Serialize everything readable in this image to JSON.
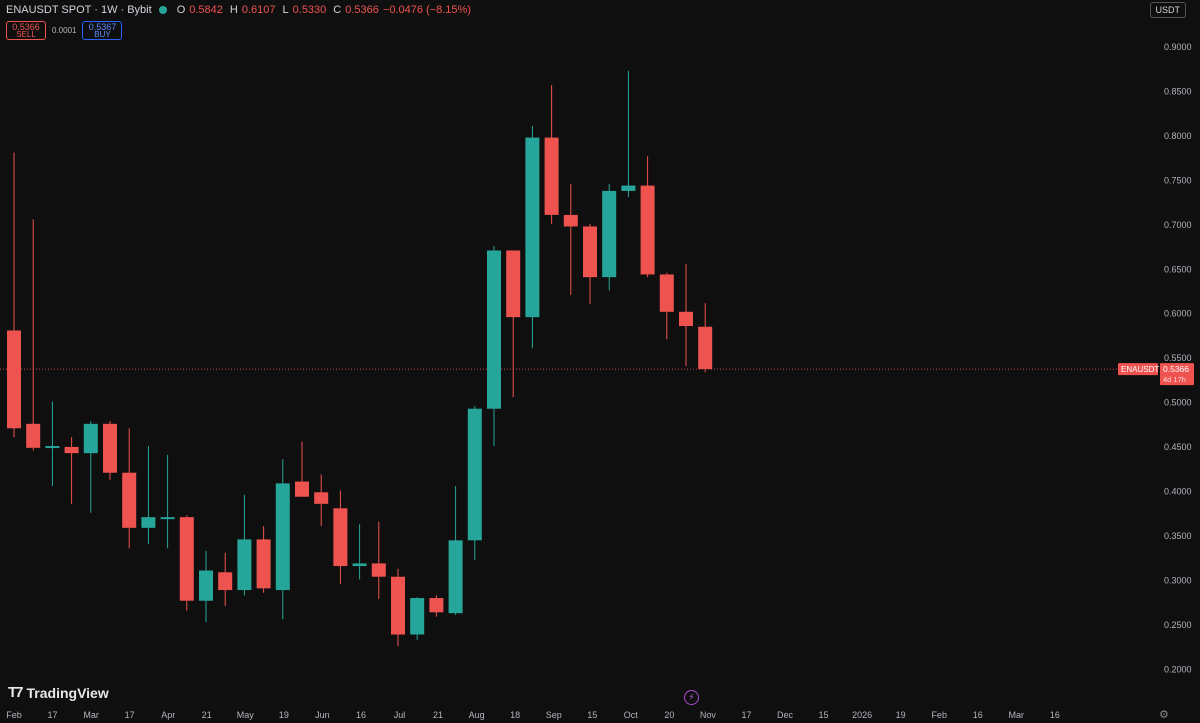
{
  "legend": {
    "symbol": "ENAUSDT SPOT · 1W · Bybit",
    "o_label": "O",
    "o": "0.5842",
    "h_label": "H",
    "h": "0.6107",
    "l_label": "L",
    "l": "0.5330",
    "c_label": "C",
    "c": "0.5366",
    "change": "−0.0476 (−8.15%)"
  },
  "trade": {
    "sell_price": "0.5366",
    "sell_label": "SELL",
    "spread": "0.0001",
    "buy_price": "0.5367",
    "buy_label": "BUY"
  },
  "currency": "USDT",
  "price_tag": {
    "name": "ENAUSDT",
    "price": "0.5366",
    "countdown": "4d 17h"
  },
  "brand": "TradingView",
  "colors": {
    "up": "#26a69a",
    "down": "#ef5350",
    "bg": "#0f0f0f",
    "axis_text": "#b2b5be"
  },
  "chart_data": {
    "type": "candlestick",
    "y_ticks": [
      "0.9000",
      "0.8500",
      "0.8000",
      "0.7500",
      "0.7000",
      "0.6500",
      "0.6000",
      "0.5500",
      "0.5000",
      "0.4500",
      "0.4000",
      "0.3500",
      "0.3000",
      "0.2500",
      "0.2000"
    ],
    "x_ticks": [
      "Feb",
      "17",
      "Mar",
      "17",
      "Apr",
      "21",
      "May",
      "19",
      "Jun",
      "16",
      "Jul",
      "21",
      "Aug",
      "18",
      "Sep",
      "15",
      "Oct",
      "20",
      "Nov",
      "17",
      "Dec",
      "15",
      "2026",
      "19",
      "Feb",
      "16",
      "Mar",
      "16"
    ],
    "ylim": [
      0.18,
      0.92
    ],
    "last_price": 0.5366,
    "candles": [
      {
        "o": 0.58,
        "h": 0.78,
        "l": 0.46,
        "c": 0.47
      },
      {
        "o": 0.475,
        "h": 0.705,
        "l": 0.445,
        "c": 0.448
      },
      {
        "o": 0.448,
        "h": 0.5,
        "l": 0.405,
        "c": 0.45
      },
      {
        "o": 0.449,
        "h": 0.46,
        "l": 0.385,
        "c": 0.442
      },
      {
        "o": 0.442,
        "h": 0.478,
        "l": 0.375,
        "c": 0.475
      },
      {
        "o": 0.475,
        "h": 0.478,
        "l": 0.412,
        "c": 0.42
      },
      {
        "o": 0.42,
        "h": 0.47,
        "l": 0.335,
        "c": 0.358
      },
      {
        "o": 0.358,
        "h": 0.45,
        "l": 0.34,
        "c": 0.37
      },
      {
        "o": 0.37,
        "h": 0.44,
        "l": 0.335,
        "c": 0.37
      },
      {
        "o": 0.37,
        "h": 0.372,
        "l": 0.265,
        "c": 0.276
      },
      {
        "o": 0.276,
        "h": 0.332,
        "l": 0.252,
        "c": 0.31
      },
      {
        "o": 0.308,
        "h": 0.33,
        "l": 0.27,
        "c": 0.288
      },
      {
        "o": 0.288,
        "h": 0.395,
        "l": 0.282,
        "c": 0.345
      },
      {
        "o": 0.345,
        "h": 0.36,
        "l": 0.285,
        "c": 0.29
      },
      {
        "o": 0.288,
        "h": 0.435,
        "l": 0.255,
        "c": 0.408
      },
      {
        "o": 0.41,
        "h": 0.455,
        "l": 0.395,
        "c": 0.393
      },
      {
        "o": 0.398,
        "h": 0.418,
        "l": 0.36,
        "c": 0.385
      },
      {
        "o": 0.38,
        "h": 0.4,
        "l": 0.295,
        "c": 0.315
      },
      {
        "o": 0.315,
        "h": 0.362,
        "l": 0.3,
        "c": 0.318
      },
      {
        "o": 0.318,
        "h": 0.365,
        "l": 0.278,
        "c": 0.303
      },
      {
        "o": 0.303,
        "h": 0.312,
        "l": 0.225,
        "c": 0.238
      },
      {
        "o": 0.238,
        "h": 0.28,
        "l": 0.232,
        "c": 0.279
      },
      {
        "o": 0.279,
        "h": 0.282,
        "l": 0.258,
        "c": 0.263
      },
      {
        "o": 0.262,
        "h": 0.405,
        "l": 0.26,
        "c": 0.344
      },
      {
        "o": 0.344,
        "h": 0.495,
        "l": 0.322,
        "c": 0.492
      },
      {
        "o": 0.492,
        "h": 0.675,
        "l": 0.45,
        "c": 0.67
      },
      {
        "o": 0.67,
        "h": 0.67,
        "l": 0.505,
        "c": 0.595
      },
      {
        "o": 0.595,
        "h": 0.81,
        "l": 0.56,
        "c": 0.797
      },
      {
        "o": 0.797,
        "h": 0.856,
        "l": 0.7,
        "c": 0.71
      },
      {
        "o": 0.71,
        "h": 0.745,
        "l": 0.62,
        "c": 0.697
      },
      {
        "o": 0.697,
        "h": 0.7,
        "l": 0.61,
        "c": 0.64
      },
      {
        "o": 0.64,
        "h": 0.745,
        "l": 0.625,
        "c": 0.737
      },
      {
        "o": 0.737,
        "h": 0.872,
        "l": 0.73,
        "c": 0.743
      },
      {
        "o": 0.743,
        "h": 0.776,
        "l": 0.64,
        "c": 0.643
      },
      {
        "o": 0.643,
        "h": 0.645,
        "l": 0.57,
        "c": 0.601
      },
      {
        "o": 0.601,
        "h": 0.655,
        "l": 0.54,
        "c": 0.585
      },
      {
        "o": 0.5842,
        "h": 0.6107,
        "l": 0.533,
        "c": 0.5366
      }
    ]
  }
}
